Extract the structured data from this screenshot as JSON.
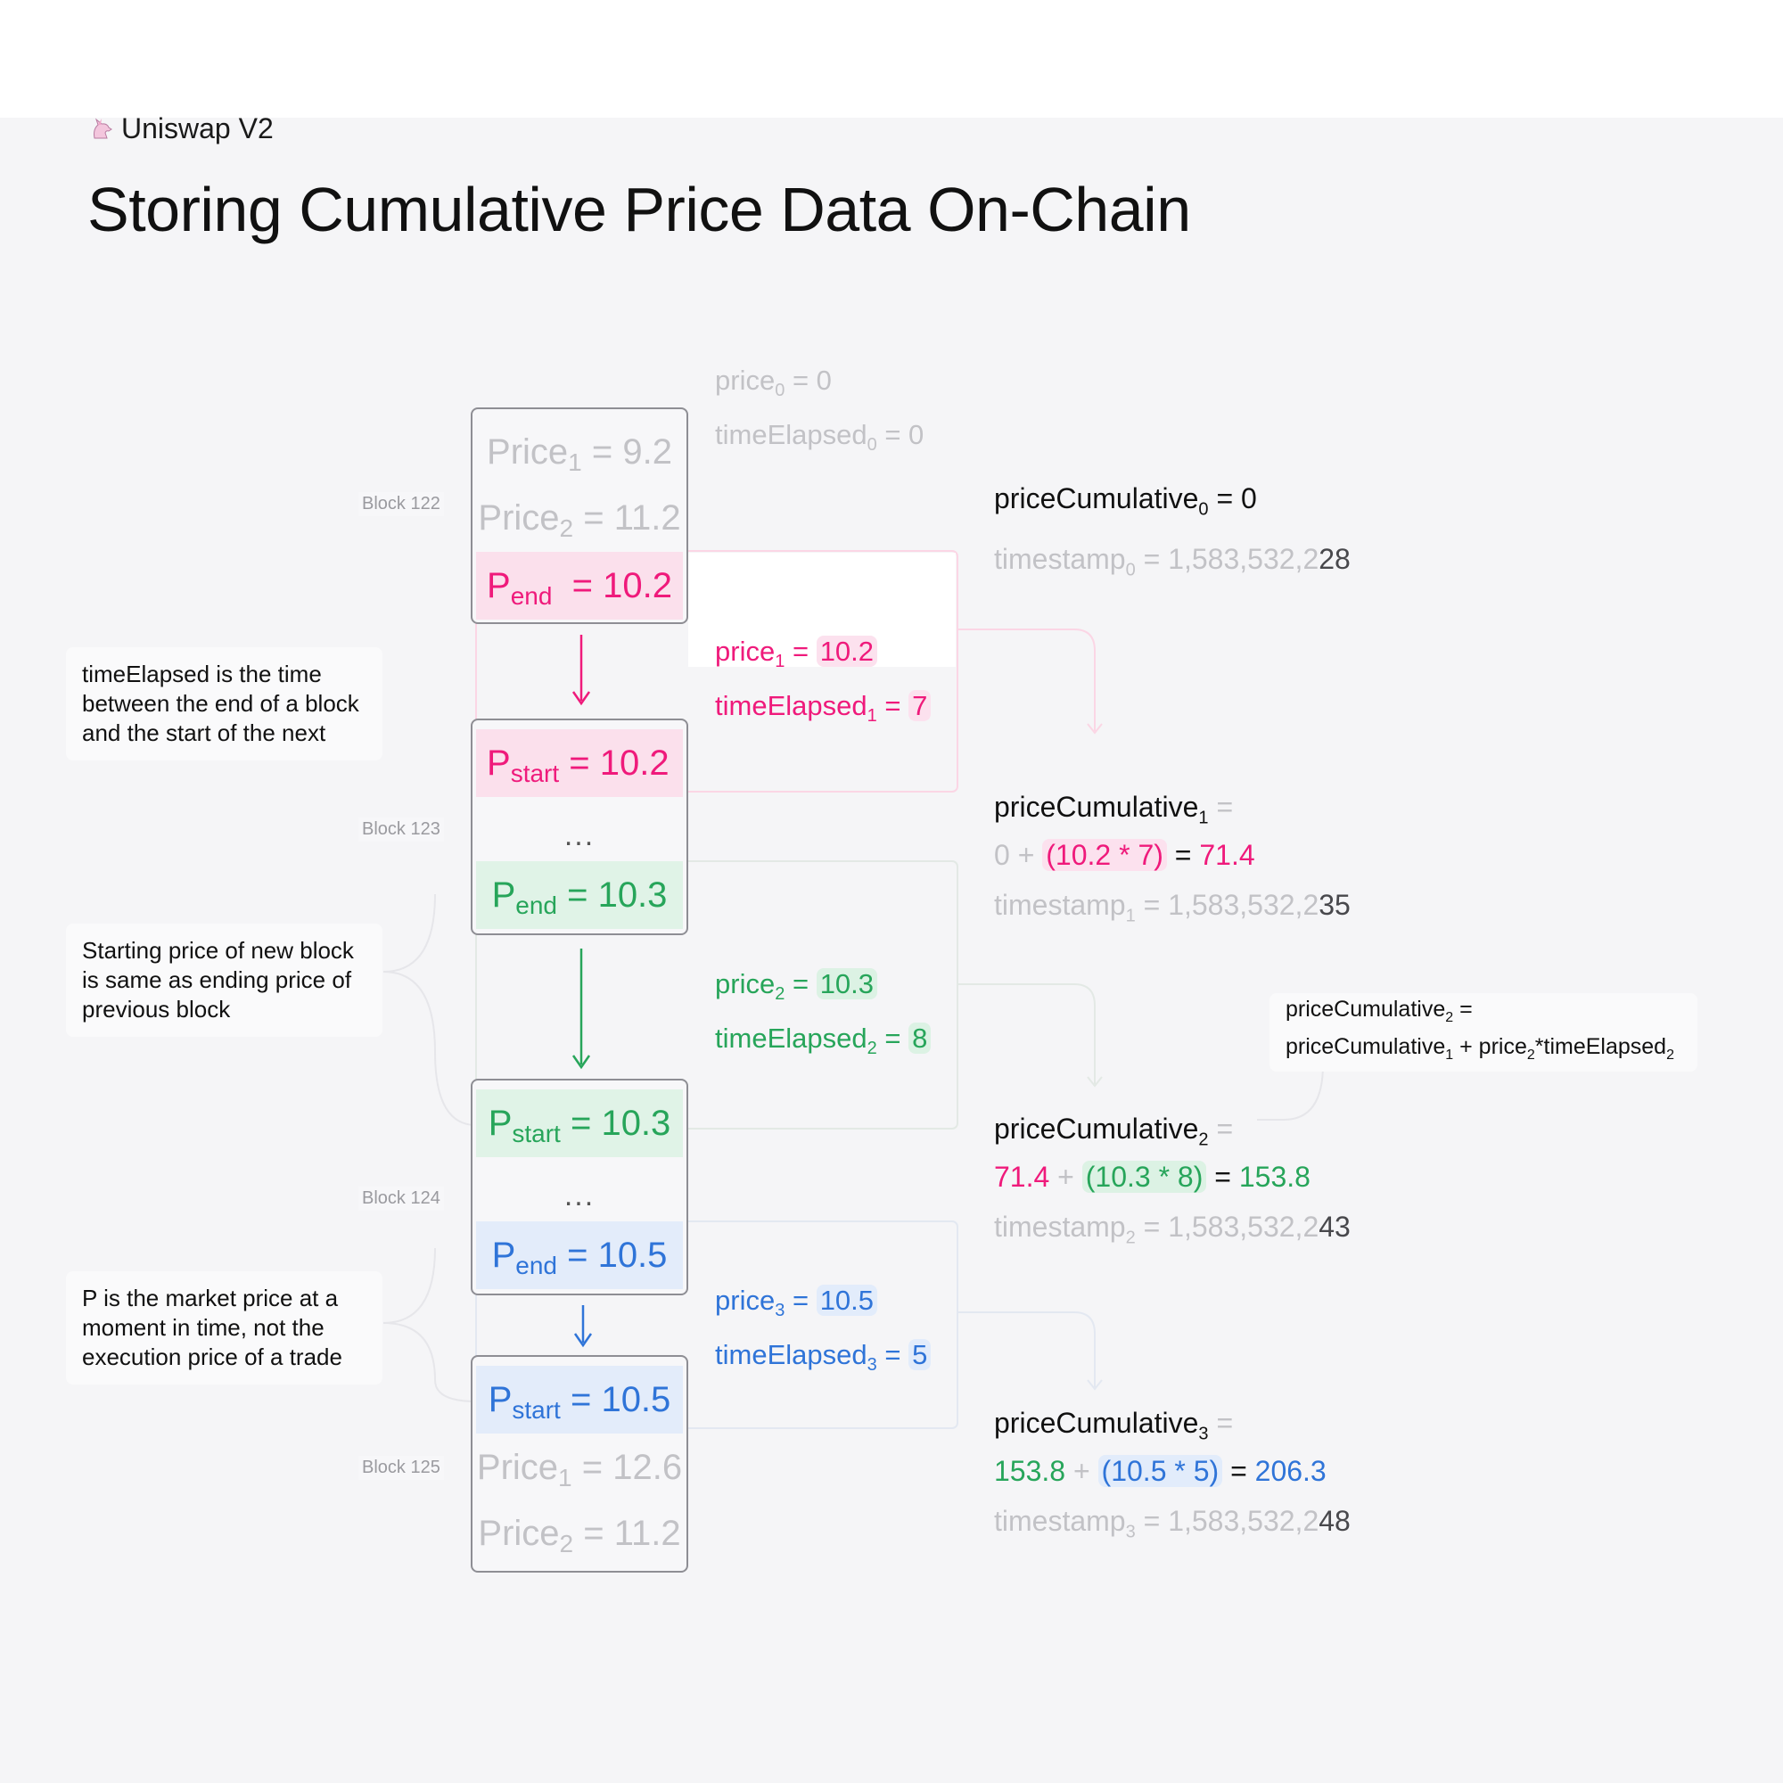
{
  "header": {
    "brand": "Uniswap V2",
    "title": "Storing Cumulative Price Data On-Chain"
  },
  "initial": {
    "price_label": "price",
    "price_sub": "0",
    "price_value": "= 0",
    "te_label": "timeElapsed",
    "te_sub": "0",
    "te_value": "= 0"
  },
  "blocks": [
    {
      "label": "Block 122",
      "rows": [
        {
          "p": "Price",
          "sub": "1",
          "v": "= 9.2"
        },
        {
          "p": "Price",
          "sub": "2",
          "v": "= 11.2"
        },
        {
          "p": "P",
          "sub": "end",
          "v": "= 10.2"
        }
      ]
    },
    {
      "label": "Block 123",
      "rows": [
        {
          "p": "P",
          "sub": "start",
          "v": "= 10.2"
        },
        {
          "p": "P",
          "sub": "end",
          "v": "= 10.3"
        }
      ],
      "dots": "..."
    },
    {
      "label": "Block 124",
      "rows": [
        {
          "p": "P",
          "sub": "start",
          "v": "= 10.3"
        },
        {
          "p": "P",
          "sub": "end",
          "v": "= 10.5"
        }
      ],
      "dots": "..."
    },
    {
      "label": "Block 125",
      "rows": [
        {
          "p": "P",
          "sub": "start",
          "v": "= 10.5"
        },
        {
          "p": "Price",
          "sub": "1",
          "v": "= 12.6"
        },
        {
          "p": "Price",
          "sub": "2",
          "v": "= 11.2"
        }
      ]
    }
  ],
  "mids": [
    {
      "price_label": "price",
      "sub": "1",
      "eq": "=",
      "price_value": "10.2",
      "te_label": "timeElapsed",
      "te_eq": "=",
      "te_value": "7"
    },
    {
      "price_label": "price",
      "sub": "2",
      "eq": "=",
      "price_value": "10.3",
      "te_label": "timeElapsed",
      "te_eq": "=",
      "te_value": "8"
    },
    {
      "price_label": "price",
      "sub": "3",
      "eq": "=",
      "price_value": "10.5",
      "te_label": "timeElapsed",
      "te_eq": "=",
      "te_value": "5"
    }
  ],
  "notes": [
    "timeElapsed is the time between the end of a block and the start of the next",
    "Starting price of new block is same as ending price of previous block",
    "P is the market price at a moment in time, not the execution price of a trade"
  ],
  "cumulative": [
    {
      "label": "priceCumulative",
      "sub": "0",
      "eq": "= 0",
      "ts_label": "timestamp",
      "ts_eq": "= 1,583,532,2",
      "ts_tail": "28"
    },
    {
      "label": "priceCumulative",
      "sub": "1",
      "eq": "=",
      "base": "0",
      "plus": "+",
      "term": "(10.2 * 7)",
      "res_eq": "=",
      "result": "71.4",
      "ts_label": "timestamp",
      "ts_eq": "= 1,583,532,2",
      "ts_tail": "35"
    },
    {
      "label": "priceCumulative",
      "sub": "2",
      "eq": "=",
      "base": "71.4",
      "plus": "+",
      "term": "(10.3 * 8)",
      "res_eq": "=",
      "result": "153.8",
      "ts_label": "timestamp",
      "ts_eq": "= 1,583,532,2",
      "ts_tail": "43"
    },
    {
      "label": "priceCumulative",
      "sub": "3",
      "eq": "=",
      "base": "153.8",
      "plus": "+",
      "term": "(10.5 * 5)",
      "res_eq": "=",
      "result": "206.3",
      "ts_label": "timestamp",
      "ts_eq": "= 1,583,532,2",
      "ts_tail": "48"
    }
  ],
  "formula": {
    "line1_label": "priceCumulative",
    "line1_sub": "2",
    "line1_eq": "=",
    "line2_a": "priceCumulative",
    "line2_a_sub": "1",
    "line2_plus": "+",
    "line2_b": "price",
    "line2_b_sub": "2",
    "line2_star": "*",
    "line2_c": "timeElapsed",
    "line2_c_sub": "2"
  },
  "colors": {
    "pink": "#ef1a7b",
    "green": "#27a55a",
    "blue": "#2f74d8",
    "gray": "#c2c2c6",
    "border": "#8e8e94"
  }
}
